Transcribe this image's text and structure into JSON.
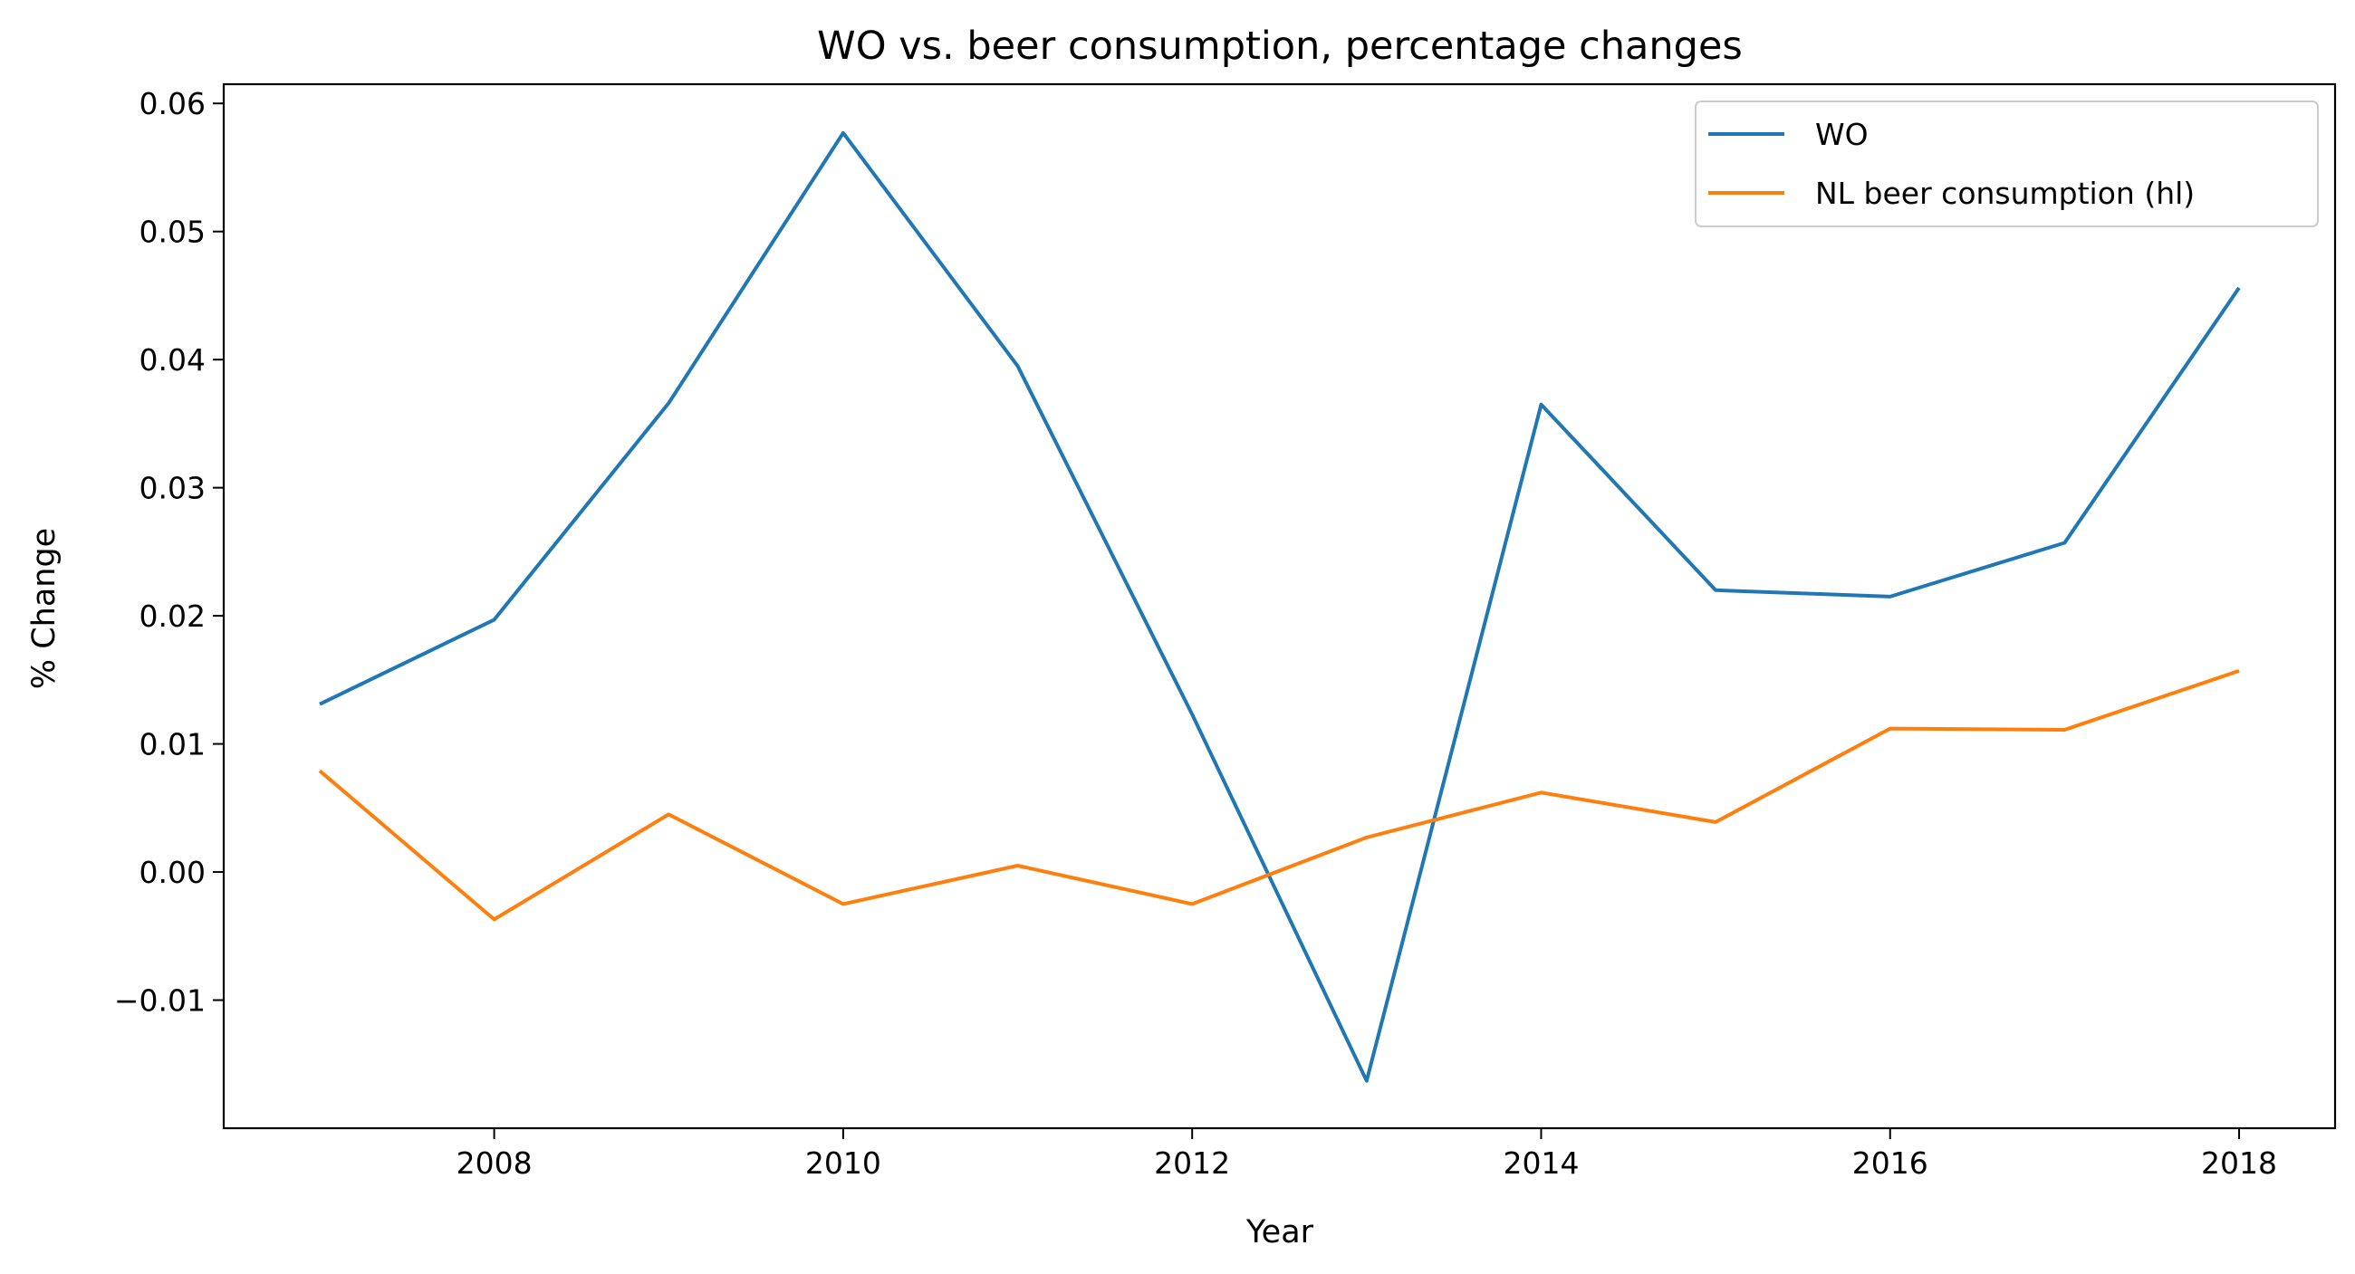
{
  "chart_data": {
    "type": "line",
    "title": "WO vs. beer consumption, percentage changes",
    "xlabel": "Year",
    "ylabel": "% Change",
    "x": [
      2007,
      2008,
      2009,
      2010,
      2011,
      2012,
      2013,
      2014,
      2015,
      2016,
      2017,
      2018
    ],
    "xlim": [
      2006.45,
      2018.55
    ],
    "ylim": [
      -0.02,
      0.0615
    ],
    "xticks": [
      2008,
      2010,
      2012,
      2014,
      2016,
      2018
    ],
    "xtick_labels": [
      "2008",
      "2010",
      "2012",
      "2014",
      "2016",
      "2018"
    ],
    "yticks": [
      -0.01,
      0.0,
      0.01,
      0.02,
      0.03,
      0.04,
      0.05,
      0.06
    ],
    "ytick_labels": [
      "−0.01",
      "0.00",
      "0.01",
      "0.02",
      "0.03",
      "0.04",
      "0.05",
      "0.06"
    ],
    "grid": false,
    "legend_position": "top-right",
    "series": [
      {
        "name": "WO",
        "color": "#1f77b4",
        "values": [
          0.0131,
          0.0197,
          0.0366,
          0.0577,
          0.0395,
          0.0123,
          -0.0163,
          0.0365,
          0.022,
          0.0215,
          0.0257,
          0.0456
        ]
      },
      {
        "name": "NL beer consumption (hl)",
        "color": "#ff7f0e",
        "values": [
          0.0079,
          -0.0037,
          0.0045,
          -0.0025,
          0.0005,
          -0.0025,
          0.0027,
          0.0062,
          0.0039,
          0.0112,
          0.0111,
          0.0157
        ]
      }
    ]
  }
}
